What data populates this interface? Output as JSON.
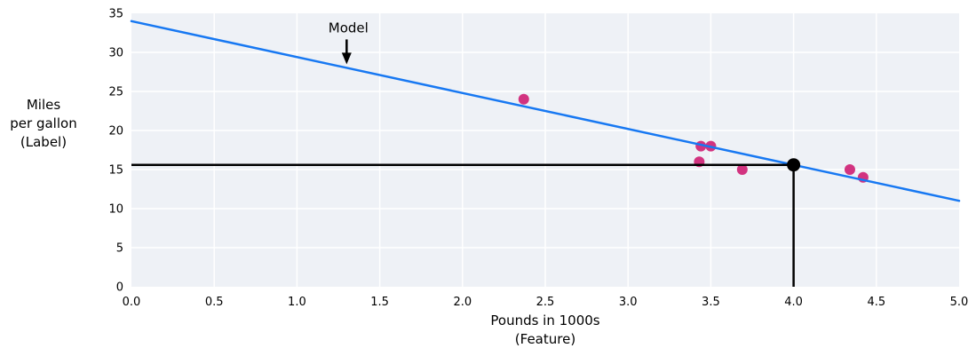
{
  "chart_data": {
    "type": "scatter",
    "title": "",
    "xlabel_lines": [
      "Pounds in 1000s",
      "(Feature)"
    ],
    "ylabel_lines": [
      "Miles",
      "per gallon",
      "(Label)"
    ],
    "xlim": [
      0,
      5
    ],
    "ylim": [
      0,
      35
    ],
    "xticks": [
      "0.0",
      "0.5",
      "1.0",
      "1.5",
      "2.0",
      "2.5",
      "3.0",
      "3.5",
      "4.0",
      "4.5",
      "5.0"
    ],
    "yticks": [
      "0",
      "5",
      "10",
      "15",
      "20",
      "25",
      "30",
      "35"
    ],
    "grid": true,
    "legend": "none",
    "points": [
      {
        "x": 2.37,
        "y": 24
      },
      {
        "x": 3.43,
        "y": 16
      },
      {
        "x": 3.44,
        "y": 18
      },
      {
        "x": 3.5,
        "y": 18
      },
      {
        "x": 3.69,
        "y": 15
      },
      {
        "x": 4.34,
        "y": 15
      },
      {
        "x": 4.42,
        "y": 14
      }
    ],
    "model_line": {
      "intercept": 34,
      "slope": -4.6,
      "x_start": 0,
      "x_end": 5
    },
    "prediction": {
      "x": 4.0,
      "y": 15.6
    },
    "annotation": {
      "label": "Model",
      "x": 1.3
    },
    "colors": {
      "model_line": "#1778f2",
      "points": "#d23380",
      "prediction": "#000000",
      "plot_bg": "#eef1f6",
      "grid": "#ffffff",
      "text": "#000000"
    }
  }
}
